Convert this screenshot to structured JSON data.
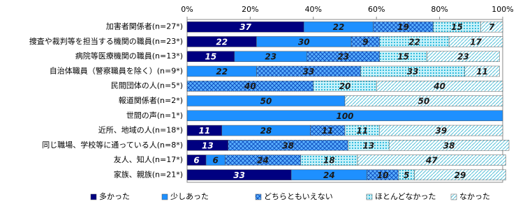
{
  "chart_data": {
    "type": "stacked-bar-horizontal",
    "categories": [
      "加害者関係者(n=27*)",
      "捜査や裁判等を担当する機関の職員(n=23*)",
      "病院等医療機関の職員(n=13*)",
      "自治体職員（警察職員を除く）(n=9*)",
      "民間団体の人(n=5*)",
      "報道関係者(n=2*)",
      "世間の声(n=1*)",
      "近所、地域の人(n=18*)",
      "同じ職場、学校等に通っている人(n=8*)",
      "友人、知人(n=17*)",
      "家族、親族(n=21*)"
    ],
    "series": [
      {
        "name": "多かった",
        "color": "#000080",
        "pattern": "solid",
        "values": [
          37,
          22,
          15,
          0,
          0,
          0,
          0,
          11,
          13,
          6,
          33
        ]
      },
      {
        "name": "少しあった",
        "color": "#1e90ff",
        "pattern": "solid",
        "values": [
          22,
          30,
          23,
          22,
          0,
          50,
          100,
          28,
          0,
          6,
          24
        ]
      },
      {
        "name": "どちらともいえない",
        "color": "#1e90ff",
        "pattern": "crosshatch",
        "values": [
          19,
          9,
          23,
          33,
          40,
          0,
          0,
          11,
          38,
          24,
          10
        ]
      },
      {
        "name": "ほとんどなかった",
        "color": "#33ccee",
        "pattern": "dots",
        "values": [
          15,
          22,
          15,
          33,
          20,
          0,
          0,
          11,
          13,
          18,
          5
        ]
      },
      {
        "name": "なかった",
        "color": "#66ccdd",
        "pattern": "diagonal",
        "values": [
          7,
          17,
          23,
          11,
          40,
          50,
          0,
          39,
          38,
          47,
          29
        ]
      }
    ],
    "xlim": [
      0,
      100
    ],
    "xticks": [
      {
        "value": 0,
        "label": "0%"
      },
      {
        "value": 20,
        "label": "20%"
      },
      {
        "value": 40,
        "label": "40%"
      },
      {
        "value": 60,
        "label": "60%"
      },
      {
        "value": 80,
        "label": "80%"
      },
      {
        "value": 100,
        "label": "100%"
      }
    ],
    "legend": "bottom"
  }
}
